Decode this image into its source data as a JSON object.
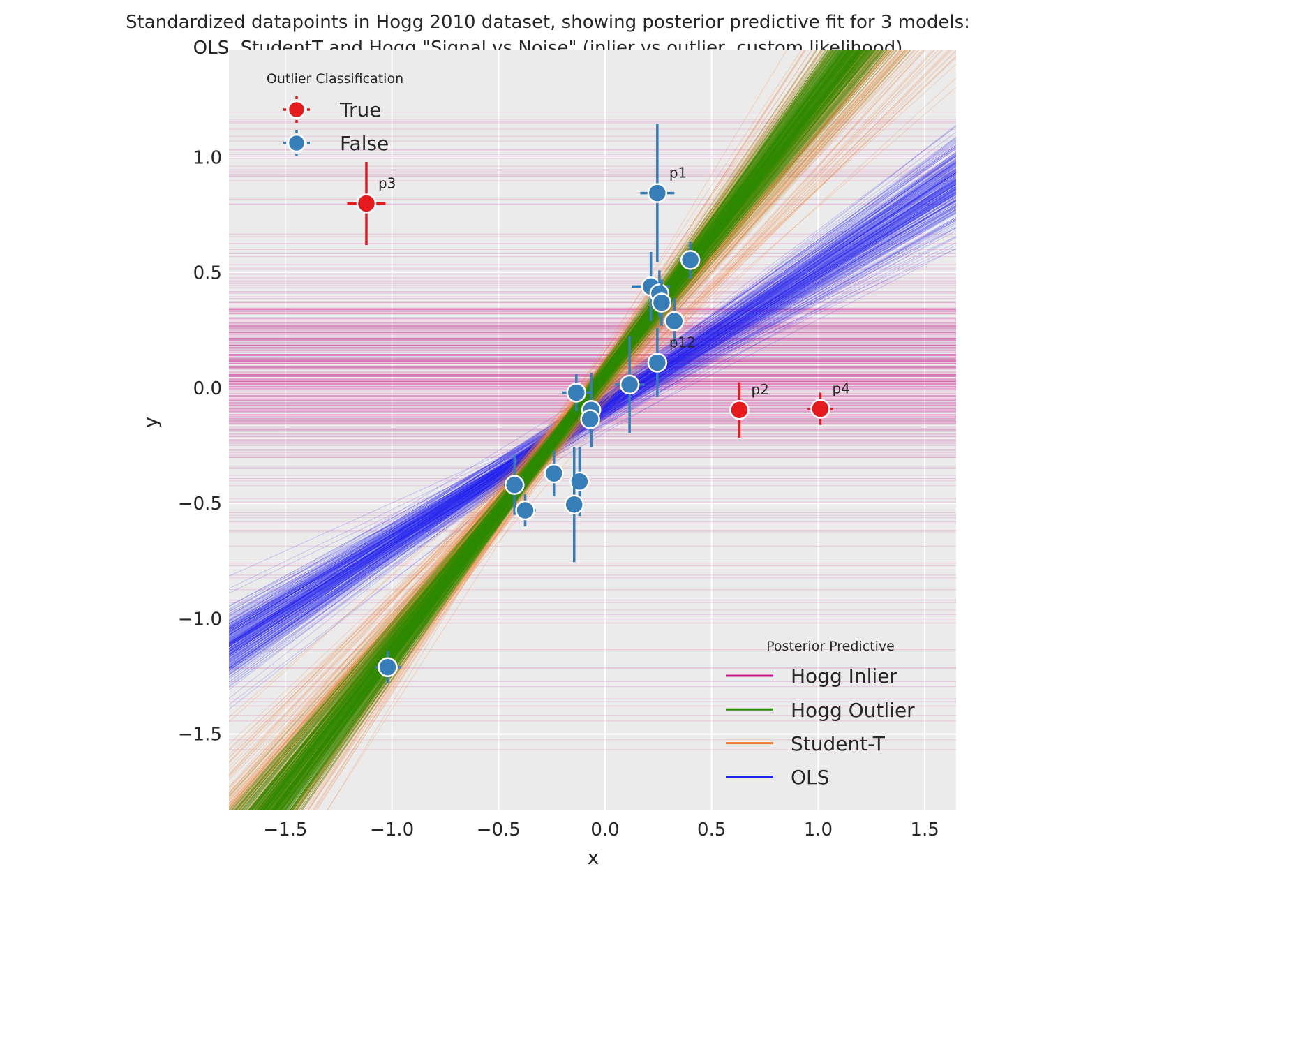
{
  "chart_data": {
    "type": "scatter",
    "title_lines": [
      "Standardized datapoints in Hogg 2010 dataset, showing posterior predictive fit for 3 models:",
      "OLS, StudentT and Hogg \"Signal vs Noise\" (inlier vs outlier, custom likelihood)"
    ],
    "xlabel": "x",
    "ylabel": "y",
    "xlim": [
      -1.765,
      1.647
    ],
    "ylim": [
      -1.828,
      1.464
    ],
    "xticks": [
      -1.5,
      -1.0,
      -0.5,
      0.0,
      0.5,
      1.0,
      1.5
    ],
    "xtick_labels": [
      "−1.5",
      "−1.0",
      "−0.5",
      "0.0",
      "0.5",
      "1.0",
      "1.5"
    ],
    "yticks": [
      1.0,
      0.5,
      0.0,
      -0.5,
      -1.0,
      -1.5
    ],
    "ytick_labels": [
      "1.0",
      "0.5",
      "0.0",
      "−0.5",
      "−1.0",
      "−1.5"
    ],
    "grid": true,
    "background": "#ebebeb",
    "outlier_legend": {
      "title": "Outlier Classification",
      "placement": "top-left",
      "entries": [
        {
          "label": "True",
          "color": "#e41a1c"
        },
        {
          "label": "False",
          "color": "#377eb8"
        }
      ]
    },
    "posterior_legend": {
      "title": "Posterior Predictive",
      "placement": "bottom-right",
      "entries": [
        {
          "label": "Hogg Inlier",
          "color": "#c71585"
        },
        {
          "label": "Hogg Outlier",
          "color": "#2e8b00"
        },
        {
          "label": "Student-T",
          "color": "#f07f30"
        },
        {
          "label": "OLS",
          "color": "#2020f0"
        }
      ]
    },
    "points": [
      {
        "x": -1.12,
        "y": 0.8,
        "xerr": 0.09,
        "yerr": 0.18,
        "outlier": true,
        "label": "p3"
      },
      {
        "x": 0.245,
        "y": 0.845,
        "xerr": 0.08,
        "yerr": 0.3,
        "outlier": false,
        "label": "p1"
      },
      {
        "x": 0.4,
        "y": 0.555,
        "xerr": 0.05,
        "yerr": 0.08,
        "outlier": false,
        "label": ""
      },
      {
        "x": 0.215,
        "y": 0.44,
        "xerr": 0.09,
        "yerr": 0.15,
        "outlier": false,
        "label": ""
      },
      {
        "x": 0.255,
        "y": 0.41,
        "xerr": 0.03,
        "yerr": 0.1,
        "outlier": false,
        "label": ""
      },
      {
        "x": 0.265,
        "y": 0.37,
        "xerr": 0.03,
        "yerr": 0.1,
        "outlier": false,
        "label": ""
      },
      {
        "x": 0.325,
        "y": 0.29,
        "xerr": 0.03,
        "yerr": 0.1,
        "outlier": false,
        "label": ""
      },
      {
        "x": 0.245,
        "y": 0.11,
        "xerr": 0.02,
        "yerr": 0.15,
        "outlier": false,
        "label": "p12"
      },
      {
        "x": 0.115,
        "y": 0.015,
        "xerr": 0.07,
        "yerr": 0.21,
        "outlier": false,
        "label": ""
      },
      {
        "x": -0.135,
        "y": -0.02,
        "xerr": 0.065,
        "yerr": 0.08,
        "outlier": false,
        "label": ""
      },
      {
        "x": -0.065,
        "y": -0.095,
        "xerr": 0.03,
        "yerr": 0.16,
        "outlier": false,
        "label": ""
      },
      {
        "x": -0.07,
        "y": -0.135,
        "xerr": 0.02,
        "yerr": 0.05,
        "outlier": false,
        "label": ""
      },
      {
        "x": 0.63,
        "y": -0.095,
        "xerr": 0.02,
        "yerr": 0.12,
        "outlier": true,
        "label": "p2"
      },
      {
        "x": 1.01,
        "y": -0.09,
        "xerr": 0.06,
        "yerr": 0.07,
        "outlier": true,
        "label": "p4"
      },
      {
        "x": -0.425,
        "y": -0.42,
        "xerr": 0.05,
        "yerr": 0.13,
        "outlier": false,
        "label": ""
      },
      {
        "x": -0.375,
        "y": -0.53,
        "xerr": 0.05,
        "yerr": 0.07,
        "outlier": false,
        "label": ""
      },
      {
        "x": -0.24,
        "y": -0.37,
        "xerr": 0.03,
        "yerr": 0.1,
        "outlier": false,
        "label": ""
      },
      {
        "x": -0.12,
        "y": -0.405,
        "xerr": 0.02,
        "yerr": 0.15,
        "outlier": false,
        "label": ""
      },
      {
        "x": -0.145,
        "y": -0.505,
        "xerr": 0.02,
        "yerr": 0.25,
        "outlier": false,
        "label": ""
      },
      {
        "x": -1.02,
        "y": -1.21,
        "xerr": 0.06,
        "yerr": 0.07,
        "outlier": false,
        "label": ""
      }
    ],
    "posterior_lines": {
      "ols": {
        "slope_mean": 0.59,
        "slope_sd": 0.05,
        "intercept_mean": -0.08,
        "intercept_sd": 0.03
      },
      "student_t": {
        "slope_mean": 1.15,
        "slope_sd": 0.12,
        "intercept_mean": 0.05,
        "intercept_sd": 0.04
      },
      "hogg_outlier": {
        "slope_mean": 1.2,
        "slope_sd": 0.06,
        "intercept_mean": 0.06,
        "intercept_sd": 0.02
      },
      "hogg_inlier_level": {
        "mean": 0.07,
        "sd": 0.2,
        "range": [
          -1.6,
          1.25
        ]
      }
    }
  }
}
